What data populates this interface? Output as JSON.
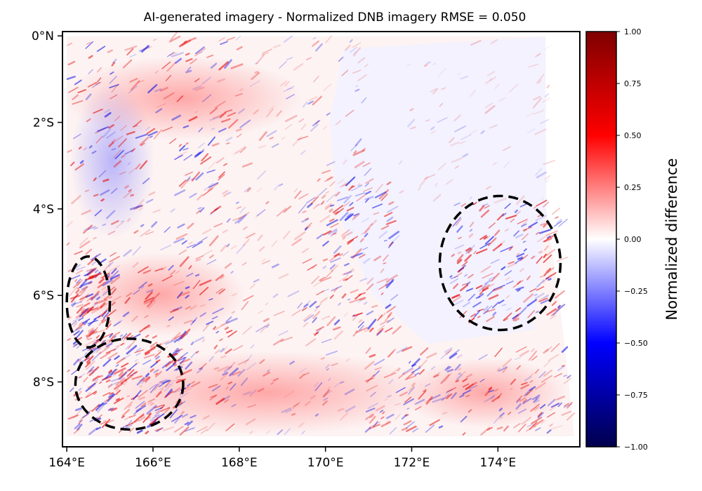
{
  "chart_data": {
    "type": "heatmap",
    "title": "AI-generated imagery - Normalized DNB imagery   RMSE = 0.050",
    "xlabel": "",
    "ylabel": "",
    "colormap": "seismic",
    "colormap_stops": [
      "#00004c",
      "#0000ff",
      "#ffffff",
      "#ff0000",
      "#7f0000"
    ],
    "value_range": [
      -1.0,
      1.0
    ],
    "x_range": [
      163.9,
      175.9
    ],
    "y_range": [
      -9.5,
      0.1
    ],
    "x_ticks": [
      164,
      166,
      168,
      170,
      172,
      174
    ],
    "x_tick_labels": [
      "164°E",
      "166°E",
      "168°E",
      "170°E",
      "172°E",
      "174°E"
    ],
    "y_ticks": [
      0,
      -2,
      -4,
      -6,
      -8
    ],
    "y_tick_labels": [
      "0°N",
      "2°S",
      "4°S",
      "6°S",
      "8°S"
    ],
    "colorbar": {
      "label": "Normalized difference",
      "ticks": [
        1.0,
        0.75,
        0.5,
        0.25,
        0.0,
        -0.25,
        -0.5,
        -0.75,
        -1.0
      ],
      "tick_labels": [
        "1.00",
        "0.75",
        "0.50",
        "0.25",
        "0.00",
        "−0.25",
        "−0.50",
        "−0.75",
        "−1.00"
      ]
    },
    "annotations": [
      {
        "shape": "dashed-ellipse",
        "center": [
          164.5,
          -6.15
        ],
        "radius": [
          0.5,
          1.05
        ]
      },
      {
        "shape": "dashed-ellipse",
        "center": [
          165.45,
          -8.05
        ],
        "radius": [
          1.25,
          1.05
        ]
      },
      {
        "shape": "dashed-ellipse",
        "center": [
          174.05,
          -5.25
        ],
        "radius": [
          1.4,
          1.55
        ]
      }
    ]
  }
}
